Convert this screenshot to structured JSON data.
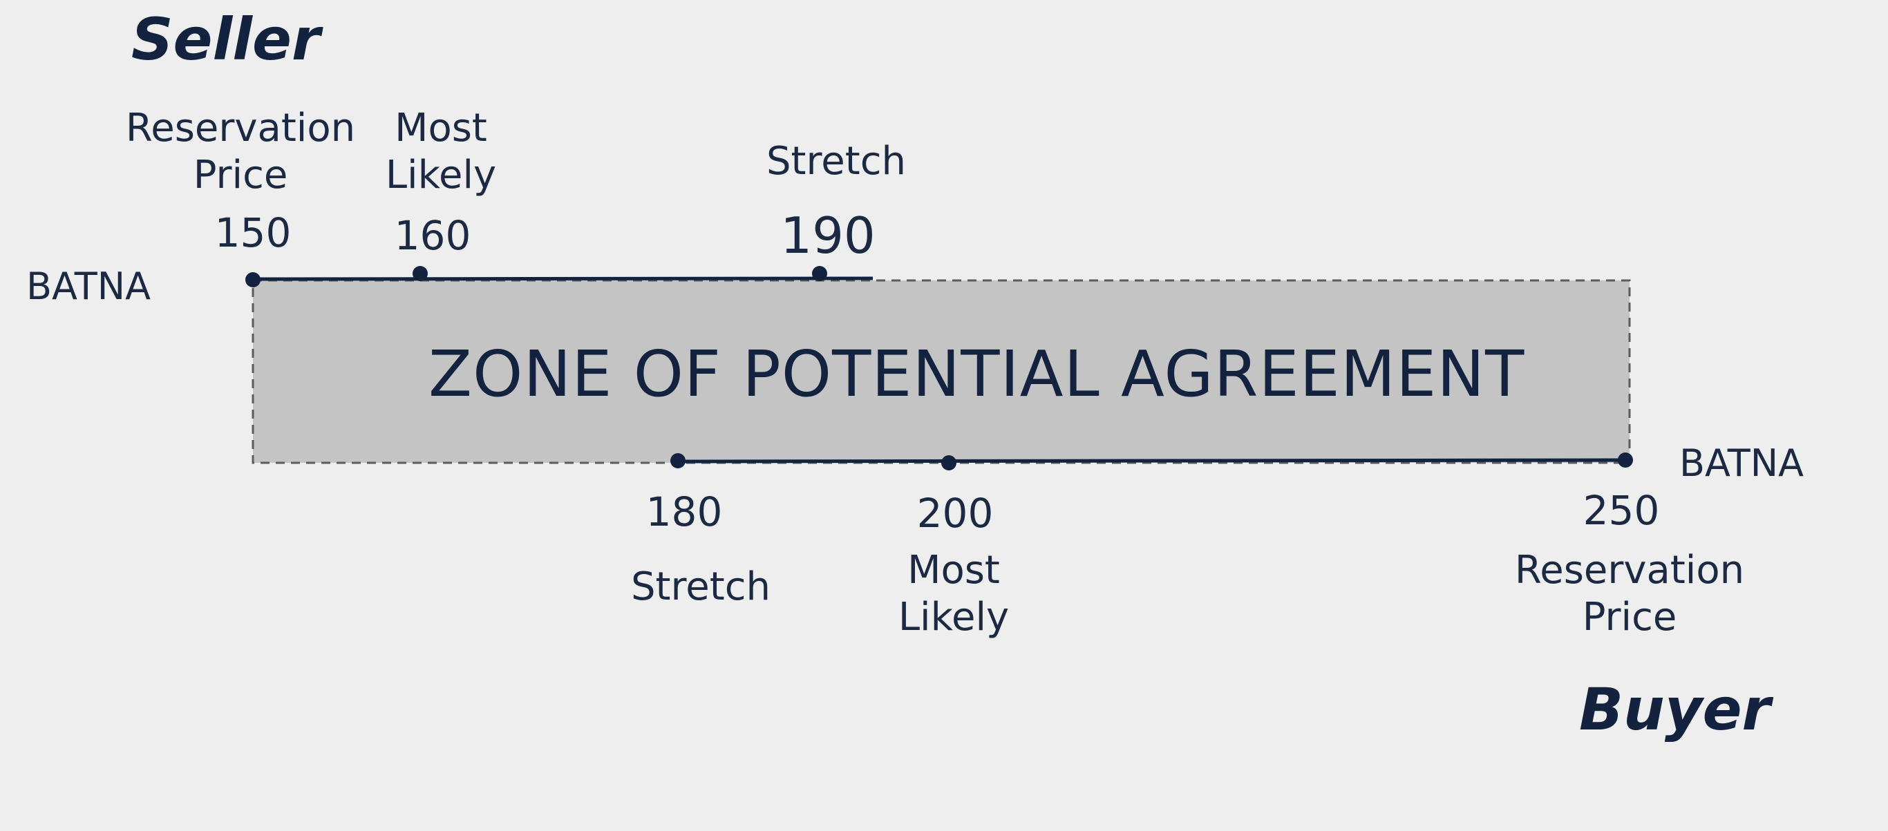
{
  "seller": {
    "title": "Seller",
    "batna_label": "BATNA",
    "points": [
      {
        "role": "Reservation Price",
        "line1": "Reservation",
        "line2": "Price",
        "value": "150"
      },
      {
        "role": "Most Likely",
        "line1": "Most",
        "line2": "Likely",
        "value": "160"
      },
      {
        "role": "Stretch",
        "line1": "Stretch",
        "value": "190"
      }
    ]
  },
  "buyer": {
    "title": "Buyer",
    "batna_label": "BATNA",
    "points": [
      {
        "role": "Stretch",
        "line1": "Stretch",
        "value": "180"
      },
      {
        "role": "Most Likely",
        "line1": "Most",
        "line2": "Likely",
        "value": "200"
      },
      {
        "role": "Reservation Price",
        "line1": "Reservation",
        "line2": "Price",
        "value": "250"
      }
    ]
  },
  "zone": {
    "label": "ZONE OF POTENTIAL AGREEMENT",
    "from": 150,
    "to": 250
  },
  "colors": {
    "background": "#eeeeee",
    "zone_fill": "#c4c4c4",
    "ink": "#13233f"
  }
}
